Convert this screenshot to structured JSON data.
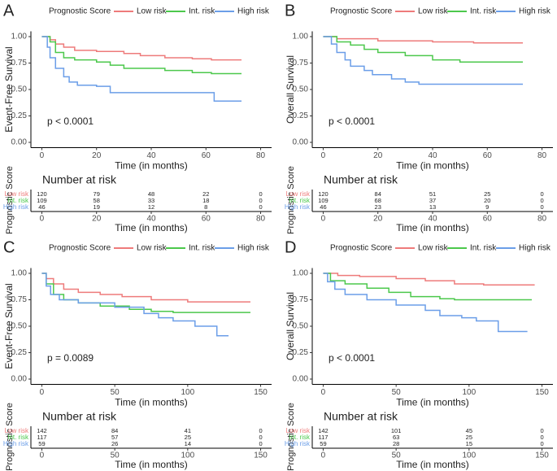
{
  "chart_data": [
    {
      "panel": "A",
      "type": "line",
      "step": true,
      "legend_title": "Prognostic Score",
      "xlabel": "Time (in months)",
      "ylabel": "Event-Free Survival",
      "xlim": [
        -4,
        84
      ],
      "xticks": [
        0,
        20,
        40,
        60,
        80
      ],
      "ylim": [
        -0.05,
        1.05
      ],
      "yticks": [
        {
          "value": 0,
          "label": "0.00"
        },
        {
          "value": 0.25,
          "label": "0.25"
        },
        {
          "value": 0.5,
          "label": "0.50"
        },
        {
          "value": 0.75,
          "label": "0.75"
        },
        {
          "value": 1,
          "label": "1.00"
        }
      ],
      "annotation": "p < 0.0001",
      "series": [
        {
          "name": "Low risk",
          "color": "#ee7b7b",
          "x": [
            0,
            3,
            5,
            8,
            12,
            20,
            30,
            36,
            45,
            55,
            62,
            73
          ],
          "values": [
            1,
            0.97,
            0.93,
            0.9,
            0.87,
            0.86,
            0.84,
            0.82,
            0.8,
            0.79,
            0.78,
            0.78
          ]
        },
        {
          "name": "Int. risk",
          "color": "#4cc84c",
          "x": [
            0,
            3,
            5,
            8,
            12,
            20,
            25,
            30,
            45,
            55,
            62,
            73
          ],
          "values": [
            1,
            0.95,
            0.85,
            0.8,
            0.78,
            0.76,
            0.73,
            0.7,
            0.68,
            0.66,
            0.65,
            0.65
          ]
        },
        {
          "name": "High risk",
          "color": "#6b9ee8",
          "x": [
            0,
            2,
            3,
            5,
            8,
            10,
            13,
            20,
            25,
            62,
            63,
            73
          ],
          "values": [
            1,
            0.9,
            0.8,
            0.7,
            0.62,
            0.57,
            0.54,
            0.53,
            0.47,
            0.47,
            0.39,
            0.39
          ]
        }
      ],
      "risk_table": {
        "title": "Number at risk",
        "ylabel": "Prognostic Score",
        "xlabel": "Time (in months)",
        "times": [
          0,
          20,
          40,
          60,
          80
        ],
        "counts": [
          [
            120,
            79,
            48,
            22,
            0
          ],
          [
            109,
            58,
            33,
            18,
            0
          ],
          [
            46,
            19,
            12,
            8,
            0
          ]
        ]
      }
    },
    {
      "panel": "B",
      "type": "line",
      "step": true,
      "legend_title": "Prognostic Score",
      "xlabel": "Time (in months)",
      "ylabel": "Overall Survival",
      "xlim": [
        -4,
        84
      ],
      "xticks": [
        0,
        20,
        40,
        60,
        80
      ],
      "ylim": [
        -0.05,
        1.05
      ],
      "yticks": [
        {
          "value": 0,
          "label": "0.00"
        },
        {
          "value": 0.25,
          "label": "0.25"
        },
        {
          "value": 0.5,
          "label": "0.50"
        },
        {
          "value": 0.75,
          "label": "0.75"
        },
        {
          "value": 1,
          "label": "1.00"
        }
      ],
      "annotation": "p < 0.0001",
      "series": [
        {
          "name": "Low risk",
          "color": "#ee7b7b",
          "x": [
            0,
            5,
            20,
            40,
            55,
            73
          ],
          "values": [
            1,
            0.98,
            0.96,
            0.95,
            0.94,
            0.94
          ]
        },
        {
          "name": "Int. risk",
          "color": "#4cc84c",
          "x": [
            0,
            5,
            10,
            15,
            20,
            30,
            40,
            50,
            73
          ],
          "values": [
            1,
            0.95,
            0.92,
            0.88,
            0.85,
            0.82,
            0.78,
            0.76,
            0.76
          ]
        },
        {
          "name": "High risk",
          "color": "#6b9ee8",
          "x": [
            0,
            3,
            5,
            8,
            10,
            15,
            18,
            25,
            30,
            35,
            73
          ],
          "values": [
            1,
            0.93,
            0.85,
            0.78,
            0.72,
            0.68,
            0.64,
            0.6,
            0.57,
            0.55,
            0.55
          ]
        }
      ],
      "risk_table": {
        "title": "Number at risk",
        "ylabel": "Prognostic Score",
        "xlabel": "Time (in months)",
        "times": [
          0,
          20,
          40,
          60,
          80
        ],
        "counts": [
          [
            120,
            84,
            51,
            25,
            0
          ],
          [
            109,
            68,
            37,
            20,
            0
          ],
          [
            46,
            23,
            13,
            9,
            0
          ]
        ]
      }
    },
    {
      "panel": "C",
      "type": "line",
      "step": true,
      "legend_title": "Prognostic Score",
      "xlabel": "Time (in months)",
      "ylabel": "Event-Free Survival",
      "xlim": [
        -7.5,
        157.5
      ],
      "xticks": [
        0,
        50,
        100,
        150
      ],
      "ylim": [
        -0.05,
        1.05
      ],
      "yticks": [
        {
          "value": 0,
          "label": "0.00"
        },
        {
          "value": 0.25,
          "label": "0.25"
        },
        {
          "value": 0.5,
          "label": "0.50"
        },
        {
          "value": 0.75,
          "label": "0.75"
        },
        {
          "value": 1,
          "label": "1.00"
        }
      ],
      "annotation": "p = 0.0089",
      "series": [
        {
          "name": "Low risk",
          "color": "#ee7b7b",
          "x": [
            0,
            3,
            8,
            15,
            25,
            40,
            55,
            75,
            100,
            143
          ],
          "values": [
            1,
            0.95,
            0.9,
            0.85,
            0.82,
            0.8,
            0.78,
            0.75,
            0.73,
            0.73
          ]
        },
        {
          "name": "Int. risk",
          "color": "#4cc84c",
          "x": [
            0,
            3,
            8,
            15,
            25,
            40,
            60,
            75,
            90,
            143
          ],
          "values": [
            1,
            0.9,
            0.8,
            0.75,
            0.72,
            0.69,
            0.66,
            0.64,
            0.63,
            0.63
          ]
        },
        {
          "name": "High risk",
          "color": "#6b9ee8",
          "x": [
            0,
            3,
            6,
            12,
            25,
            50,
            70,
            80,
            90,
            105,
            120,
            128
          ],
          "values": [
            1,
            0.88,
            0.8,
            0.75,
            0.72,
            0.68,
            0.62,
            0.58,
            0.55,
            0.5,
            0.41,
            0.41
          ]
        }
      ],
      "risk_table": {
        "title": "Number at risk",
        "ylabel": "Prognostic Score",
        "xlabel": "Time (in months)",
        "times": [
          0,
          50,
          100,
          150
        ],
        "counts": [
          [
            142,
            84,
            41,
            0
          ],
          [
            117,
            57,
            25,
            0
          ],
          [
            59,
            26,
            14,
            0
          ]
        ]
      }
    },
    {
      "panel": "D",
      "type": "line",
      "step": true,
      "legend_title": "Prognostic Score",
      "xlabel": "Time (in months)",
      "ylabel": "Overall Survival",
      "xlim": [
        -7.5,
        157.5
      ],
      "xticks": [
        0,
        50,
        100,
        150
      ],
      "ylim": [
        -0.05,
        1.05
      ],
      "yticks": [
        {
          "value": 0,
          "label": "0.00"
        },
        {
          "value": 0.25,
          "label": "0.25"
        },
        {
          "value": 0.5,
          "label": "0.50"
        },
        {
          "value": 0.75,
          "label": "0.75"
        },
        {
          "value": 1,
          "label": "1.00"
        }
      ],
      "annotation": "p < 0.0001",
      "series": [
        {
          "name": "Low risk",
          "color": "#ee7b7b",
          "x": [
            0,
            10,
            25,
            50,
            70,
            90,
            110,
            145
          ],
          "values": [
            1,
            0.98,
            0.97,
            0.95,
            0.93,
            0.9,
            0.89,
            0.89
          ]
        },
        {
          "name": "Int. risk",
          "color": "#4cc84c",
          "x": [
            0,
            5,
            15,
            30,
            45,
            60,
            80,
            90,
            143
          ],
          "values": [
            1,
            0.93,
            0.9,
            0.86,
            0.82,
            0.78,
            0.76,
            0.75,
            0.75
          ]
        },
        {
          "name": "High risk",
          "color": "#6b9ee8",
          "x": [
            0,
            3,
            8,
            15,
            30,
            50,
            70,
            80,
            95,
            105,
            120,
            140
          ],
          "values": [
            1,
            0.92,
            0.85,
            0.8,
            0.75,
            0.7,
            0.65,
            0.6,
            0.58,
            0.55,
            0.45,
            0.45
          ]
        }
      ],
      "risk_table": {
        "title": "Number at risk",
        "ylabel": "Prognostic Score",
        "xlabel": "Time (in months)",
        "times": [
          0,
          50,
          100,
          150
        ],
        "counts": [
          [
            142,
            101,
            45,
            0
          ],
          [
            117,
            63,
            25,
            0
          ],
          [
            59,
            28,
            15,
            0
          ]
        ]
      }
    }
  ]
}
